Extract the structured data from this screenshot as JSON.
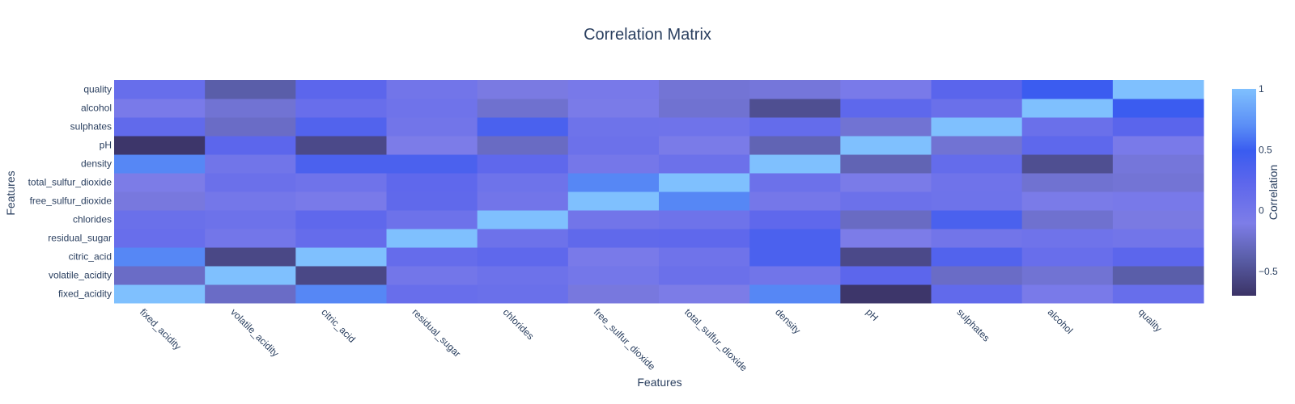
{
  "chart_data": {
    "type": "heatmap",
    "title": "Correlation Matrix",
    "xlabel": "Features",
    "ylabel": "Features",
    "colorbar": {
      "title": "Correlation",
      "range": [
        -0.7,
        1
      ],
      "ticks": [
        {
          "value": 1,
          "label": "1"
        },
        {
          "value": 0.5,
          "label": "0.5"
        },
        {
          "value": 0,
          "label": "0"
        },
        {
          "value": -0.5,
          "label": "−0.5"
        }
      ],
      "colorscale": [
        [
          0.0,
          "#3b3366"
        ],
        [
          0.18,
          "#5a5ea8"
        ],
        [
          0.35,
          "#7d7de8"
        ],
        [
          0.55,
          "#5c66ec"
        ],
        [
          0.7,
          "#3a5cf0"
        ],
        [
          0.82,
          "#5a8df6"
        ],
        [
          1.0,
          "#7fc0fe"
        ]
      ]
    },
    "x_categories": [
      "fixed_acidity",
      "volatile_acidity",
      "citric_acid",
      "residual_sugar",
      "chlorides",
      "free_sulfur_dioxide",
      "total_sulfur_dioxide",
      "density",
      "pH",
      "sulphates",
      "alcohol",
      "quality"
    ],
    "y_categories": [
      "fixed_acidity",
      "volatile_acidity",
      "citric_acid",
      "residual_sugar",
      "chlorides",
      "free_sulfur_dioxide",
      "total_sulfur_dioxide",
      "density",
      "pH",
      "sulphates",
      "alcohol",
      "quality"
    ],
    "z": [
      [
        1.0,
        -0.26,
        0.67,
        0.11,
        0.09,
        -0.15,
        -0.11,
        0.67,
        -0.68,
        0.18,
        -0.06,
        0.12
      ],
      [
        -0.26,
        1.0,
        -0.55,
        0.0,
        0.06,
        -0.01,
        0.08,
        0.02,
        0.23,
        -0.26,
        -0.2,
        -0.39
      ],
      [
        0.67,
        -0.55,
        1.0,
        0.14,
        0.2,
        -0.06,
        0.04,
        0.36,
        -0.54,
        0.31,
        0.11,
        0.23
      ],
      [
        0.11,
        0.0,
        0.14,
        1.0,
        0.06,
        0.19,
        0.2,
        0.36,
        -0.09,
        0.01,
        0.04,
        0.01
      ],
      [
        0.09,
        0.06,
        0.2,
        0.06,
        1.0,
        0.01,
        0.05,
        0.2,
        -0.27,
        0.37,
        -0.22,
        -0.13
      ],
      [
        -0.15,
        -0.01,
        -0.06,
        0.19,
        0.01,
        1.0,
        0.67,
        -0.02,
        0.07,
        0.05,
        -0.07,
        -0.05
      ],
      [
        -0.11,
        0.08,
        0.04,
        0.2,
        0.05,
        0.67,
        1.0,
        0.07,
        -0.07,
        0.04,
        -0.21,
        -0.19
      ],
      [
        0.67,
        0.02,
        0.36,
        0.36,
        0.2,
        -0.02,
        0.07,
        1.0,
        -0.34,
        0.15,
        -0.5,
        -0.17
      ],
      [
        -0.68,
        0.23,
        -0.54,
        -0.09,
        -0.27,
        0.07,
        -0.07,
        -0.34,
        1.0,
        -0.2,
        0.21,
        -0.06
      ],
      [
        0.18,
        -0.26,
        0.31,
        0.01,
        0.37,
        0.05,
        0.04,
        0.15,
        -0.2,
        1.0,
        0.09,
        0.25
      ],
      [
        -0.06,
        -0.2,
        0.11,
        0.04,
        -0.22,
        -0.07,
        -0.21,
        -0.5,
        0.21,
        0.09,
        1.0,
        0.48
      ],
      [
        0.12,
        -0.39,
        0.23,
        0.01,
        -0.13,
        -0.05,
        -0.19,
        -0.17,
        -0.06,
        0.25,
        0.48,
        1.0
      ]
    ]
  }
}
